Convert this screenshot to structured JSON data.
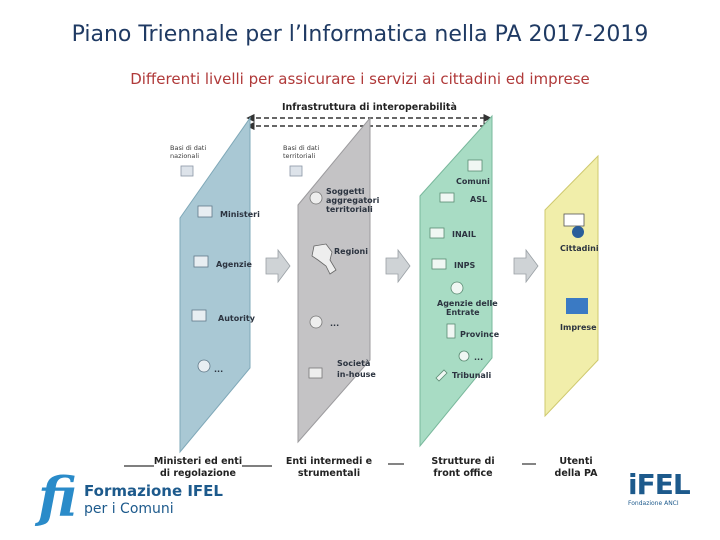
{
  "title": "Piano Triennale per l’Informatica nella PA 2017-2019",
  "subtitle": "Differenti livelli per assicurare i servizi ai cittadini ed imprese",
  "diagram": {
    "top_label": "Infrastruttura di interoperabilità",
    "db_nazionali": "Basi di dati nazionali",
    "db_territoriali": "Basi di dati territoriali",
    "panel1_items": [
      "Ministeri",
      "Agenzie",
      "Autority",
      "..."
    ],
    "panel2_items": [
      "Soggetti",
      "aggregatori",
      "territoriali",
      "Regioni",
      "...",
      "Società",
      "in-house"
    ],
    "panel3_items": [
      "Comuni",
      "ASL",
      "INAIL",
      "INPS",
      "Agenzie delle",
      "Entrate",
      "Province",
      "...",
      "Tribunali"
    ],
    "panel4_items": [
      "Cittadini",
      "Imprese"
    ],
    "bottom_labels": [
      [
        "Ministeri ed enti",
        "di regolazione"
      ],
      [
        "Enti intermedi e",
        "strumentali"
      ],
      [
        "Strutture di",
        "front office"
      ],
      [
        "Utenti",
        "della PA"
      ]
    ],
    "colors": {
      "panel1": "#a9c8d4",
      "panel2": "#c4c3c5",
      "panel3": "#a8dcc4",
      "panel4": "#f1eeaa",
      "title": "#1f3a63",
      "subtitle": "#b03a3a"
    }
  },
  "logo_left": {
    "line1": "Formazione IFEL",
    "line2": "per i Comuni"
  },
  "logo_right": {
    "main": "iFEL",
    "sub": "Fondazione ANCI"
  }
}
